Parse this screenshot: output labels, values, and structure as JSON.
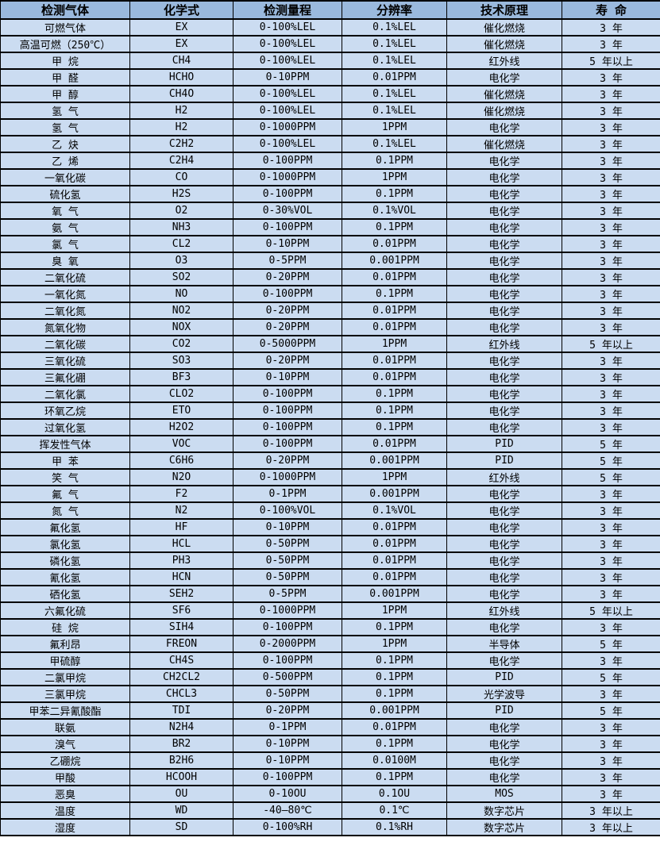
{
  "colors": {
    "header_bg": "#9ab9dd",
    "row_bg": "#cbdcf1",
    "border": "#000000",
    "text": "#000000"
  },
  "table": {
    "columns": [
      "检测气体",
      "化学式",
      "检测量程",
      "分辨率",
      "技术原理",
      "寿 命"
    ],
    "rows": [
      [
        "可燃气体",
        "EX",
        "0-100%LEL",
        "0.1%LEL",
        "催化燃烧",
        "3 年"
      ],
      [
        "高温可燃（250℃）",
        "EX",
        "0-100%LEL",
        "0.1%LEL",
        "催化燃烧",
        "3 年"
      ],
      [
        "甲 烷",
        "CH4",
        "0-100%LEL",
        "0.1%LEL",
        "红外线",
        "5 年以上"
      ],
      [
        "甲 醛",
        "HCHO",
        "0-10PPM",
        "0.01PPM",
        "电化学",
        "3 年"
      ],
      [
        "甲 醇",
        "CH4O",
        "0-100%LEL",
        "0.1%LEL",
        "催化燃烧",
        "3 年"
      ],
      [
        "氢 气",
        "H2",
        "0-100%LEL",
        "0.1%LEL",
        "催化燃烧",
        "3 年"
      ],
      [
        "氢 气",
        "H2",
        "0-1000PPM",
        "1PPM",
        "电化学",
        "3 年"
      ],
      [
        "乙 炔",
        "C2H2",
        "0-100%LEL",
        "0.1%LEL",
        "催化燃烧",
        "3 年"
      ],
      [
        "乙 烯",
        "C2H4",
        "0-100PPM",
        "0.1PPM",
        "电化学",
        "3 年"
      ],
      [
        "一氧化碳",
        "CO",
        "0-1000PPM",
        "1PPM",
        "电化学",
        "3 年"
      ],
      [
        "硫化氢",
        "H2S",
        "0-100PPM",
        "0.1PPM",
        "电化学",
        "3 年"
      ],
      [
        "氧 气",
        "O2",
        "0-30%VOL",
        "0.1%VOL",
        "电化学",
        "3 年"
      ],
      [
        "氨 气",
        "NH3",
        "0-100PPM",
        "0.1PPM",
        "电化学",
        "3 年"
      ],
      [
        "氯 气",
        "CL2",
        "0-10PPM",
        "0.01PPM",
        "电化学",
        "3 年"
      ],
      [
        "臭 氧",
        "O3",
        "0-5PPM",
        "0.001PPM",
        "电化学",
        "3 年"
      ],
      [
        "二氧化硫",
        "SO2",
        "0-20PPM",
        "0.01PPM",
        "电化学",
        "3 年"
      ],
      [
        "一氧化氮",
        "NO",
        "0-100PPM",
        "0.1PPM",
        "电化学",
        "3 年"
      ],
      [
        "二氧化氮",
        "NO2",
        "0-20PPM",
        "0.01PPM",
        "电化学",
        "3 年"
      ],
      [
        "氮氧化物",
        "NOX",
        "0-20PPM",
        "0.01PPM",
        "电化学",
        "3 年"
      ],
      [
        "二氧化碳",
        "CO2",
        "0-5000PPM",
        "1PPM",
        "红外线",
        "5 年以上"
      ],
      [
        "三氧化硫",
        "SO3",
        "0-20PPM",
        "0.01PPM",
        "电化学",
        "3 年"
      ],
      [
        "三氟化硼",
        "BF3",
        "0-10PPM",
        "0.01PPM",
        "电化学",
        "3 年"
      ],
      [
        "二氧化氯",
        "CLO2",
        "0-100PPM",
        "0.1PPM",
        "电化学",
        "3 年"
      ],
      [
        "环氧乙烷",
        "ETO",
        "0-100PPM",
        "0.1PPM",
        "电化学",
        "3 年"
      ],
      [
        "过氧化氢",
        "H2O2",
        "0-100PPM",
        "0.1PPM",
        "电化学",
        "3 年"
      ],
      [
        "挥发性气体",
        "VOC",
        "0-100PPM",
        "0.01PPM",
        "PID",
        "5 年"
      ],
      [
        "甲 苯",
        "C6H6",
        "0-20PPM",
        "0.001PPM",
        "PID",
        "5 年"
      ],
      [
        "笑 气",
        "N2O",
        "0-1000PPM",
        "1PPM",
        "红外线",
        "5 年"
      ],
      [
        "氟 气",
        "F2",
        "0-1PPM",
        "0.001PPM",
        "电化学",
        "3 年"
      ],
      [
        "氮 气",
        "N2",
        "0-100%VOL",
        "0.1%VOL",
        "电化学",
        "3 年"
      ],
      [
        "氟化氢",
        "HF",
        "0-10PPM",
        "0.01PPM",
        "电化学",
        "3 年"
      ],
      [
        "氯化氢",
        "HCL",
        "0-50PPM",
        "0.01PPM",
        "电化学",
        "3 年"
      ],
      [
        "磷化氢",
        "PH3",
        "0-50PPM",
        "0.01PPM",
        "电化学",
        "3 年"
      ],
      [
        "氰化氢",
        "HCN",
        "0-50PPM",
        "0.01PPM",
        "电化学",
        "3 年"
      ],
      [
        "硒化氢",
        "SEH2",
        "0-5PPM",
        "0.001PPM",
        "电化学",
        "3 年"
      ],
      [
        "六氟化硫",
        "SF6",
        "0-1000PPM",
        "1PPM",
        "红外线",
        "5 年以上"
      ],
      [
        "硅 烷",
        "SIH4",
        "0-100PPM",
        "0.1PPM",
        "电化学",
        "3 年"
      ],
      [
        "氟利昂",
        "FREON",
        "0-2000PPM",
        "1PPM",
        "半导体",
        "5 年"
      ],
      [
        "甲硫醇",
        "CH4S",
        "0-100PPM",
        "0.1PPM",
        "电化学",
        "3 年"
      ],
      [
        "二氯甲烷",
        "CH2CL2",
        "0-500PPM",
        "0.1PPM",
        "PID",
        "5 年"
      ],
      [
        "三氯甲烷",
        "CHCL3",
        "0-50PPM",
        "0.1PPM",
        "光学波导",
        "3 年"
      ],
      [
        "甲苯二异氰酸酯",
        "TDI",
        "0-20PPM",
        "0.001PPM",
        "PID",
        "5 年"
      ],
      [
        "联氨",
        "N2H4",
        "0-1PPM",
        "0.01PPM",
        "电化学",
        "3 年"
      ],
      [
        "溴气",
        "BR2",
        "0-10PPM",
        "0.1PPM",
        "电化学",
        "3 年"
      ],
      [
        "乙硼烷",
        "B2H6",
        "0-10PPM",
        "0.0100M",
        "电化学",
        "3 年"
      ],
      [
        "甲酸",
        "HCOOH",
        "0-100PPM",
        "0.1PPM",
        "电化学",
        "3 年"
      ],
      [
        "恶臭",
        "OU",
        "0-10OU",
        "0.1OU",
        "MOS",
        "3 年"
      ],
      [
        "温度",
        "WD",
        "-40—80℃",
        "0.1℃",
        "数字芯片",
        "3 年以上"
      ],
      [
        "湿度",
        "SD",
        "0-100%RH",
        "0.1%RH",
        "数字芯片",
        "3 年以上"
      ]
    ]
  }
}
